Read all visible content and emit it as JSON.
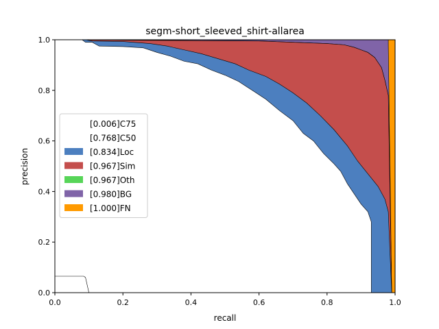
{
  "chart_data": {
    "type": "area",
    "title": "segm-short_sleeved_shirt-allarea",
    "xlabel": "recall",
    "ylabel": "precision",
    "xlim": [
      0,
      1
    ],
    "ylim": [
      0,
      1
    ],
    "xticks": [
      "0.0",
      "0.2",
      "0.4",
      "0.6",
      "0.8",
      "1.0"
    ],
    "yticks": [
      "0.0",
      "0.2",
      "0.4",
      "0.6",
      "0.8",
      "1.0"
    ],
    "legend_position": "center-left",
    "series": [
      {
        "name": "[0.006]C75",
        "color": "#ffffff",
        "points": [
          [
            0,
            0.065
          ],
          [
            0.085,
            0.065
          ],
          [
            0.09,
            0.06
          ],
          [
            0.1,
            0
          ],
          [
            1,
            0
          ]
        ]
      },
      {
        "name": "[0.768]C50",
        "color": "#ffffff",
        "points": [
          [
            0,
            1
          ],
          [
            0.08,
            1
          ],
          [
            0.09,
            0.99
          ],
          [
            0.11,
            0.99
          ],
          [
            0.13,
            0.975
          ],
          [
            0.2,
            0.973
          ],
          [
            0.26,
            0.968
          ],
          [
            0.3,
            0.95
          ],
          [
            0.34,
            0.935
          ],
          [
            0.38,
            0.915
          ],
          [
            0.42,
            0.905
          ],
          [
            0.46,
            0.88
          ],
          [
            0.5,
            0.86
          ],
          [
            0.54,
            0.835
          ],
          [
            0.58,
            0.8
          ],
          [
            0.62,
            0.765
          ],
          [
            0.66,
            0.72
          ],
          [
            0.7,
            0.68
          ],
          [
            0.73,
            0.63
          ],
          [
            0.76,
            0.6
          ],
          [
            0.79,
            0.55
          ],
          [
            0.82,
            0.51
          ],
          [
            0.84,
            0.48
          ],
          [
            0.86,
            0.43
          ],
          [
            0.88,
            0.39
          ],
          [
            0.9,
            0.35
          ],
          [
            0.92,
            0.32
          ],
          [
            0.93,
            0.28
          ],
          [
            0.93,
            0
          ],
          [
            1,
            0
          ]
        ]
      },
      {
        "name": "[0.834]Loc",
        "color": "#4c7fbf",
        "points": [
          [
            0,
            1
          ],
          [
            0.09,
            1
          ],
          [
            0.11,
            0.995
          ],
          [
            0.2,
            0.993
          ],
          [
            0.28,
            0.985
          ],
          [
            0.33,
            0.975
          ],
          [
            0.38,
            0.96
          ],
          [
            0.43,
            0.945
          ],
          [
            0.48,
            0.925
          ],
          [
            0.53,
            0.905
          ],
          [
            0.57,
            0.88
          ],
          [
            0.62,
            0.855
          ],
          [
            0.66,
            0.825
          ],
          [
            0.7,
            0.79
          ],
          [
            0.74,
            0.75
          ],
          [
            0.78,
            0.7
          ],
          [
            0.82,
            0.645
          ],
          [
            0.86,
            0.58
          ],
          [
            0.89,
            0.52
          ],
          [
            0.92,
            0.47
          ],
          [
            0.95,
            0.42
          ],
          [
            0.97,
            0.37
          ],
          [
            0.98,
            0.32
          ],
          [
            0.99,
            0
          ],
          [
            1,
            0
          ]
        ]
      },
      {
        "name": "[0.967]Sim",
        "color": "#c44e4c",
        "points": [
          [
            0,
            1
          ],
          [
            0.6,
            0.995
          ],
          [
            0.7,
            0.99
          ],
          [
            0.8,
            0.985
          ],
          [
            0.85,
            0.98
          ],
          [
            0.88,
            0.97
          ],
          [
            0.9,
            0.96
          ],
          [
            0.92,
            0.95
          ],
          [
            0.94,
            0.93
          ],
          [
            0.96,
            0.89
          ],
          [
            0.97,
            0.84
          ],
          [
            0.98,
            0.78
          ],
          [
            0.99,
            0
          ],
          [
            1,
            0
          ]
        ]
      },
      {
        "name": "[0.967]Oth",
        "color": "#57d558",
        "points": [
          [
            0,
            1
          ],
          [
            0.6,
            0.995
          ],
          [
            0.7,
            0.99
          ],
          [
            0.8,
            0.985
          ],
          [
            0.85,
            0.98
          ],
          [
            0.88,
            0.97
          ],
          [
            0.9,
            0.96
          ],
          [
            0.92,
            0.95
          ],
          [
            0.94,
            0.93
          ],
          [
            0.96,
            0.89
          ],
          [
            0.97,
            0.84
          ],
          [
            0.98,
            0.78
          ],
          [
            0.99,
            0
          ],
          [
            1,
            0
          ]
        ]
      },
      {
        "name": "[0.980]BG",
        "color": "#8064a8",
        "points": [
          [
            0,
            1
          ],
          [
            0.98,
            1
          ],
          [
            0.98,
            0.98
          ],
          [
            0.99,
            0
          ],
          [
            1,
            0
          ]
        ]
      },
      {
        "name": "[1.000]FN",
        "color": "#ff9a00",
        "points": [
          [
            0,
            1
          ],
          [
            1,
            1
          ],
          [
            1,
            0
          ]
        ]
      }
    ]
  }
}
